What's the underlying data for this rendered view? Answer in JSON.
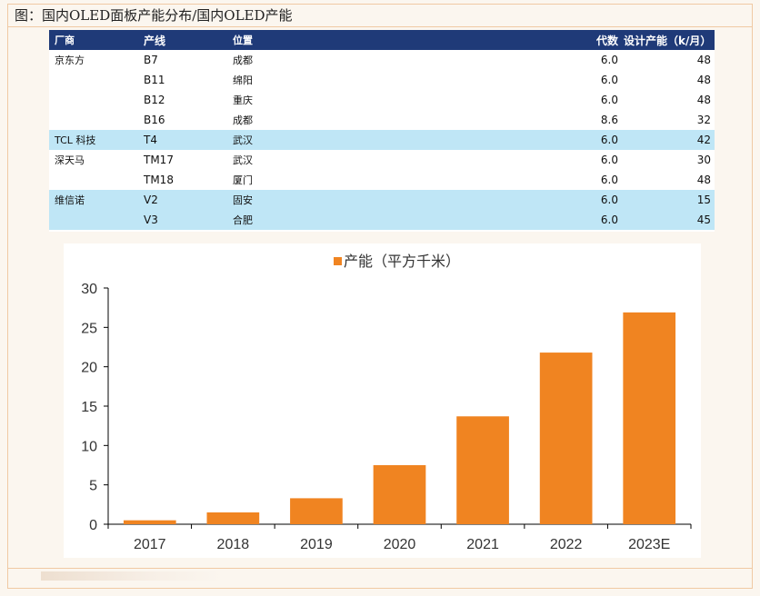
{
  "caption": "图：国内OLED面板产能分布/国内OLED产能",
  "table": {
    "headers": [
      "厂商",
      "产线",
      "位置",
      "代数",
      "设计产能（k/月）"
    ],
    "rows": [
      {
        "maker": "京东方",
        "line": "B7",
        "location": "成都",
        "gen": "6.0",
        "capacity": "48",
        "highlight": false
      },
      {
        "maker": "",
        "line": "B11",
        "location": "绵阳",
        "gen": "6.0",
        "capacity": "48",
        "highlight": false
      },
      {
        "maker": "",
        "line": "B12",
        "location": "重庆",
        "gen": "6.0",
        "capacity": "48",
        "highlight": false
      },
      {
        "maker": "",
        "line": "B16",
        "location": "成都",
        "gen": "8.6",
        "capacity": "32",
        "highlight": false
      },
      {
        "maker": "TCL 科技",
        "line": "T4",
        "location": "武汉",
        "gen": "6.0",
        "capacity": "42",
        "highlight": true
      },
      {
        "maker": "深天马",
        "line": "TM17",
        "location": "武汉",
        "gen": "6.0",
        "capacity": "30",
        "highlight": false
      },
      {
        "maker": "",
        "line": "TM18",
        "location": "厦门",
        "gen": "6.0",
        "capacity": "48",
        "highlight": false
      },
      {
        "maker": "维信诺",
        "line": "V2",
        "location": "固安",
        "gen": "6.0",
        "capacity": "15",
        "highlight": true
      },
      {
        "maker": "",
        "line": "V3",
        "location": "合肥",
        "gen": "6.0",
        "capacity": "45",
        "highlight": true
      }
    ]
  },
  "chart_data": {
    "type": "bar",
    "categories": [
      "2017",
      "2018",
      "2019",
      "2020",
      "2021",
      "2022",
      "2023E"
    ],
    "series": [
      {
        "name": "产能（平方千米）",
        "values": [
          0.5,
          1.5,
          3.3,
          7.5,
          13.7,
          21.8,
          26.9
        ],
        "color": "#f08421"
      }
    ],
    "ylim": [
      0,
      30
    ],
    "yticks": [
      0,
      5,
      10,
      15,
      20,
      25,
      30
    ],
    "legend": "top-center",
    "grid": false
  }
}
